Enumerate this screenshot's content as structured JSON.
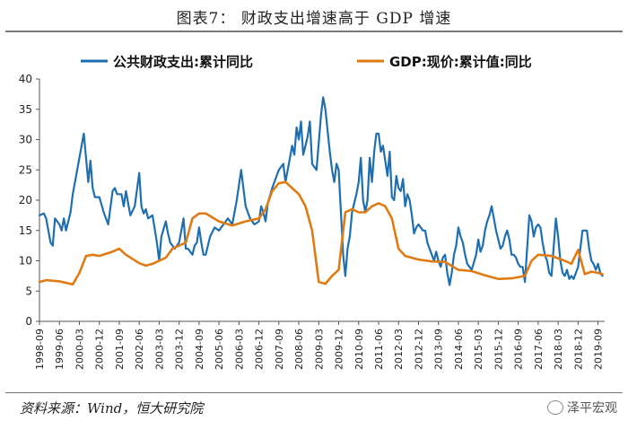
{
  "figure": {
    "title": "图表7：  财政支出增速高于 GDP 增速",
    "source": "资料来源：Wind，恒大研究院",
    "watermark": "泽平宏观"
  },
  "chart_data": {
    "type": "line",
    "title": "",
    "xlabel": "",
    "ylabel": "",
    "ylim": [
      0,
      40
    ],
    "yticks": [
      0,
      5,
      10,
      15,
      20,
      25,
      30,
      35,
      40
    ],
    "xlim": [
      "1998-09",
      "2019-12"
    ],
    "xtick_labels": [
      "1998-09",
      "1999-06",
      "2000-03",
      "2000-12",
      "2001-09",
      "2002-06",
      "2003-03",
      "2003-12",
      "2004-09",
      "2005-06",
      "2006-03",
      "2006-12",
      "2007-09",
      "2008-06",
      "2009-03",
      "2009-12",
      "2010-09",
      "2011-06",
      "2012-03",
      "2012-12",
      "2013-09",
      "2014-06",
      "2015-03",
      "2015-12",
      "2016-09",
      "2017-06",
      "2018-03",
      "2018-12",
      "2019-09"
    ],
    "legend_position": "top",
    "grid": false,
    "series": [
      {
        "name": "公共财政支出:累计同比",
        "color": "#1f6fb0",
        "points": [
          [
            "1998-09",
            17.5
          ],
          [
            "1998-11",
            17.8
          ],
          [
            "1998-12",
            17
          ],
          [
            "1999-02",
            13
          ],
          [
            "1999-03",
            12.5
          ],
          [
            "1999-04",
            17
          ],
          [
            "1999-06",
            16
          ],
          [
            "1999-07",
            15
          ],
          [
            "1999-08",
            17
          ],
          [
            "1999-09",
            15
          ],
          [
            "1999-11",
            18
          ],
          [
            "1999-12",
            21
          ],
          [
            "2000-03",
            27
          ],
          [
            "2000-05",
            31
          ],
          [
            "2000-06",
            27
          ],
          [
            "2000-07",
            23
          ],
          [
            "2000-08",
            26.5
          ],
          [
            "2000-09",
            22
          ],
          [
            "2000-10",
            20.5
          ],
          [
            "2000-12",
            20.5
          ],
          [
            "2001-02",
            18
          ],
          [
            "2001-04",
            16
          ],
          [
            "2001-06",
            21.5
          ],
          [
            "2001-07",
            22
          ],
          [
            "2001-08",
            21
          ],
          [
            "2001-10",
            21
          ],
          [
            "2001-11",
            19
          ],
          [
            "2001-12",
            21.5
          ],
          [
            "2002-02",
            17.5
          ],
          [
            "2002-04",
            19
          ],
          [
            "2002-06",
            24.5
          ],
          [
            "2002-07",
            19
          ],
          [
            "2002-08",
            17.8
          ],
          [
            "2002-09",
            18.5
          ],
          [
            "2002-10",
            17
          ],
          [
            "2002-12",
            17.5
          ],
          [
            "2003-02",
            13
          ],
          [
            "2003-03",
            10
          ],
          [
            "2003-04",
            14
          ],
          [
            "2003-06",
            16.5
          ],
          [
            "2003-07",
            14.5
          ],
          [
            "2003-08",
            13
          ],
          [
            "2003-10",
            12
          ],
          [
            "2003-12",
            13
          ],
          [
            "2004-02",
            17
          ],
          [
            "2004-03",
            12
          ],
          [
            "2004-04",
            12
          ],
          [
            "2004-06",
            11
          ],
          [
            "2004-07",
            12.5
          ],
          [
            "2004-08",
            13
          ],
          [
            "2004-09",
            15.5
          ],
          [
            "2004-10",
            13
          ],
          [
            "2004-11",
            11
          ],
          [
            "2004-12",
            11
          ],
          [
            "2005-02",
            14
          ],
          [
            "2005-04",
            15.5
          ],
          [
            "2005-06",
            15
          ],
          [
            "2005-08",
            16
          ],
          [
            "2005-10",
            17
          ],
          [
            "2005-12",
            16
          ],
          [
            "2006-02",
            20
          ],
          [
            "2006-04",
            25
          ],
          [
            "2006-06",
            19
          ],
          [
            "2006-08",
            17
          ],
          [
            "2006-10",
            16
          ],
          [
            "2006-12",
            16.5
          ],
          [
            "2007-01",
            19
          ],
          [
            "2007-02",
            18
          ],
          [
            "2007-03",
            16.5
          ],
          [
            "2007-04",
            19.5
          ],
          [
            "2007-06",
            22
          ],
          [
            "2007-09",
            25
          ],
          [
            "2007-11",
            26
          ],
          [
            "2007-12",
            23
          ],
          [
            "2008-02",
            27
          ],
          [
            "2008-03",
            29
          ],
          [
            "2008-04",
            27.5
          ],
          [
            "2008-05",
            32
          ],
          [
            "2008-06",
            30
          ],
          [
            "2008-07",
            33
          ],
          [
            "2008-08",
            27.5
          ],
          [
            "2008-09",
            29
          ],
          [
            "2008-10",
            30.5
          ],
          [
            "2008-11",
            33
          ],
          [
            "2008-12",
            26
          ],
          [
            "2009-02",
            25
          ],
          [
            "2009-04",
            34
          ],
          [
            "2009-05",
            37
          ],
          [
            "2009-06",
            35
          ],
          [
            "2009-08",
            28
          ],
          [
            "2009-09",
            25
          ],
          [
            "2009-10",
            23
          ],
          [
            "2009-11",
            26
          ],
          [
            "2009-12",
            25
          ],
          [
            "2010-02",
            11
          ],
          [
            "2010-03",
            7.5
          ],
          [
            "2010-04",
            12
          ],
          [
            "2010-05",
            14
          ],
          [
            "2010-06",
            18
          ],
          [
            "2010-07",
            19.5
          ],
          [
            "2010-08",
            21
          ],
          [
            "2010-09",
            23
          ],
          [
            "2010-10",
            27
          ],
          [
            "2010-11",
            20
          ],
          [
            "2010-12",
            18
          ],
          [
            "2011-01",
            20
          ],
          [
            "2011-02",
            27
          ],
          [
            "2011-03",
            23
          ],
          [
            "2011-04",
            28
          ],
          [
            "2011-05",
            31
          ],
          [
            "2011-06",
            31
          ],
          [
            "2011-07",
            28
          ],
          [
            "2011-08",
            29
          ],
          [
            "2011-09",
            26.5
          ],
          [
            "2011-10",
            24
          ],
          [
            "2011-11",
            28
          ],
          [
            "2011-12",
            20.5
          ],
          [
            "2012-01",
            20
          ],
          [
            "2012-02",
            24
          ],
          [
            "2012-03",
            22
          ],
          [
            "2012-04",
            21.5
          ],
          [
            "2012-05",
            23.5
          ],
          [
            "2012-06",
            19
          ],
          [
            "2012-07",
            21
          ],
          [
            "2012-08",
            20
          ],
          [
            "2012-09",
            17.5
          ],
          [
            "2012-10",
            14.5
          ],
          [
            "2012-11",
            15.5
          ],
          [
            "2012-12",
            16
          ],
          [
            "2013-02",
            15
          ],
          [
            "2013-03",
            15
          ],
          [
            "2013-04",
            13
          ],
          [
            "2013-05",
            12
          ],
          [
            "2013-06",
            11
          ],
          [
            "2013-07",
            10
          ],
          [
            "2013-08",
            11.5
          ],
          [
            "2013-09",
            10
          ],
          [
            "2013-10",
            9
          ],
          [
            "2013-11",
            10.5
          ],
          [
            "2013-12",
            11
          ],
          [
            "2014-01",
            8
          ],
          [
            "2014-02",
            6
          ],
          [
            "2014-03",
            8
          ],
          [
            "2014-04",
            11
          ],
          [
            "2014-05",
            12.5
          ],
          [
            "2014-06",
            15.5
          ],
          [
            "2014-07",
            14
          ],
          [
            "2014-08",
            13
          ],
          [
            "2014-09",
            11
          ],
          [
            "2014-10",
            9.5
          ],
          [
            "2014-11",
            9
          ],
          [
            "2014-12",
            8.5
          ],
          [
            "2015-02",
            11
          ],
          [
            "2015-03",
            13.5
          ],
          [
            "2015-04",
            11.5
          ],
          [
            "2015-05",
            12.5
          ],
          [
            "2015-06",
            15
          ],
          [
            "2015-07",
            16.5
          ],
          [
            "2015-08",
            17.5
          ],
          [
            "2015-09",
            19
          ],
          [
            "2015-10",
            17
          ],
          [
            "2015-11",
            15
          ],
          [
            "2015-12",
            13.5
          ],
          [
            "2016-01",
            12
          ],
          [
            "2016-02",
            12.5
          ],
          [
            "2016-03",
            14
          ],
          [
            "2016-04",
            15
          ],
          [
            "2016-05",
            13.5
          ],
          [
            "2016-06",
            11
          ],
          [
            "2016-07",
            11
          ],
          [
            "2016-08",
            10.5
          ],
          [
            "2016-09",
            9.5
          ],
          [
            "2016-10",
            9
          ],
          [
            "2016-11",
            9
          ],
          [
            "2016-12",
            6.5
          ],
          [
            "2017-02",
            17.5
          ],
          [
            "2017-03",
            16.5
          ],
          [
            "2017-04",
            14
          ],
          [
            "2017-05",
            15.5
          ],
          [
            "2017-06",
            16
          ],
          [
            "2017-07",
            15.5
          ],
          [
            "2017-08",
            13
          ],
          [
            "2017-09",
            11
          ],
          [
            "2017-10",
            10
          ],
          [
            "2017-11",
            8
          ],
          [
            "2017-12",
            7.5
          ],
          [
            "2018-02",
            17
          ],
          [
            "2018-03",
            14
          ],
          [
            "2018-04",
            10
          ],
          [
            "2018-05",
            8
          ],
          [
            "2018-06",
            7.5
          ],
          [
            "2018-07",
            8.5
          ],
          [
            "2018-08",
            7
          ],
          [
            "2018-09",
            7.5
          ],
          [
            "2018-10",
            7
          ],
          [
            "2018-11",
            8
          ],
          [
            "2018-12",
            9
          ],
          [
            "2019-02",
            15
          ],
          [
            "2019-03",
            15
          ],
          [
            "2019-04",
            15
          ],
          [
            "2019-05",
            12
          ],
          [
            "2019-06",
            10
          ],
          [
            "2019-07",
            9.5
          ],
          [
            "2019-08",
            8.5
          ],
          [
            "2019-09",
            9.5
          ],
          [
            "2019-10",
            8
          ],
          [
            "2019-11",
            7.5
          ]
        ]
      },
      {
        "name": "GDP:现价:累计值:同比",
        "color": "#e07b14",
        "points": [
          [
            "1998-09",
            6.5
          ],
          [
            "1998-12",
            6.8
          ],
          [
            "1999-06",
            6.6
          ],
          [
            "1999-12",
            6.1
          ],
          [
            "2000-03",
            8
          ],
          [
            "2000-06",
            10.8
          ],
          [
            "2000-09",
            11
          ],
          [
            "2000-12",
            10.8
          ],
          [
            "2001-06",
            11.5
          ],
          [
            "2001-09",
            12
          ],
          [
            "2001-12",
            11
          ],
          [
            "2002-06",
            9.6
          ],
          [
            "2002-09",
            9.2
          ],
          [
            "2002-12",
            9.5
          ],
          [
            "2003-06",
            10.5
          ],
          [
            "2003-09",
            12
          ],
          [
            "2003-12",
            12.5
          ],
          [
            "2004-03",
            13
          ],
          [
            "2004-06",
            17
          ],
          [
            "2004-09",
            17.8
          ],
          [
            "2004-12",
            17.8
          ],
          [
            "2005-06",
            16.5
          ],
          [
            "2005-12",
            15.8
          ],
          [
            "2006-06",
            16.5
          ],
          [
            "2006-12",
            17
          ],
          [
            "2007-03",
            18.5
          ],
          [
            "2007-06",
            21.5
          ],
          [
            "2007-09",
            22.8
          ],
          [
            "2007-12",
            23
          ],
          [
            "2008-03",
            22
          ],
          [
            "2008-06",
            21
          ],
          [
            "2008-09",
            19
          ],
          [
            "2008-12",
            15
          ],
          [
            "2009-03",
            6.5
          ],
          [
            "2009-06",
            6.2
          ],
          [
            "2009-09",
            7.5
          ],
          [
            "2009-12",
            8.5
          ],
          [
            "2010-03",
            18
          ],
          [
            "2010-06",
            18.5
          ],
          [
            "2010-09",
            18
          ],
          [
            "2010-12",
            18
          ],
          [
            "2011-03",
            19
          ],
          [
            "2011-06",
            19.5
          ],
          [
            "2011-09",
            19
          ],
          [
            "2011-12",
            17
          ],
          [
            "2012-03",
            12
          ],
          [
            "2012-06",
            10.8
          ],
          [
            "2012-09",
            10.5
          ],
          [
            "2012-12",
            10.2
          ],
          [
            "2013-06",
            9.9
          ],
          [
            "2013-12",
            9.8
          ],
          [
            "2014-06",
            8.5
          ],
          [
            "2014-12",
            8.3
          ],
          [
            "2015-06",
            7.6
          ],
          [
            "2015-12",
            7
          ],
          [
            "2016-06",
            7.1
          ],
          [
            "2016-12",
            7.5
          ],
          [
            "2017-03",
            10
          ],
          [
            "2017-06",
            11
          ],
          [
            "2017-12",
            10.8
          ],
          [
            "2018-06",
            10
          ],
          [
            "2018-09",
            9.5
          ],
          [
            "2018-12",
            11.8
          ],
          [
            "2019-03",
            7.8
          ],
          [
            "2019-06",
            8.2
          ],
          [
            "2019-09",
            8
          ],
          [
            "2019-11",
            7.8
          ]
        ]
      }
    ]
  }
}
